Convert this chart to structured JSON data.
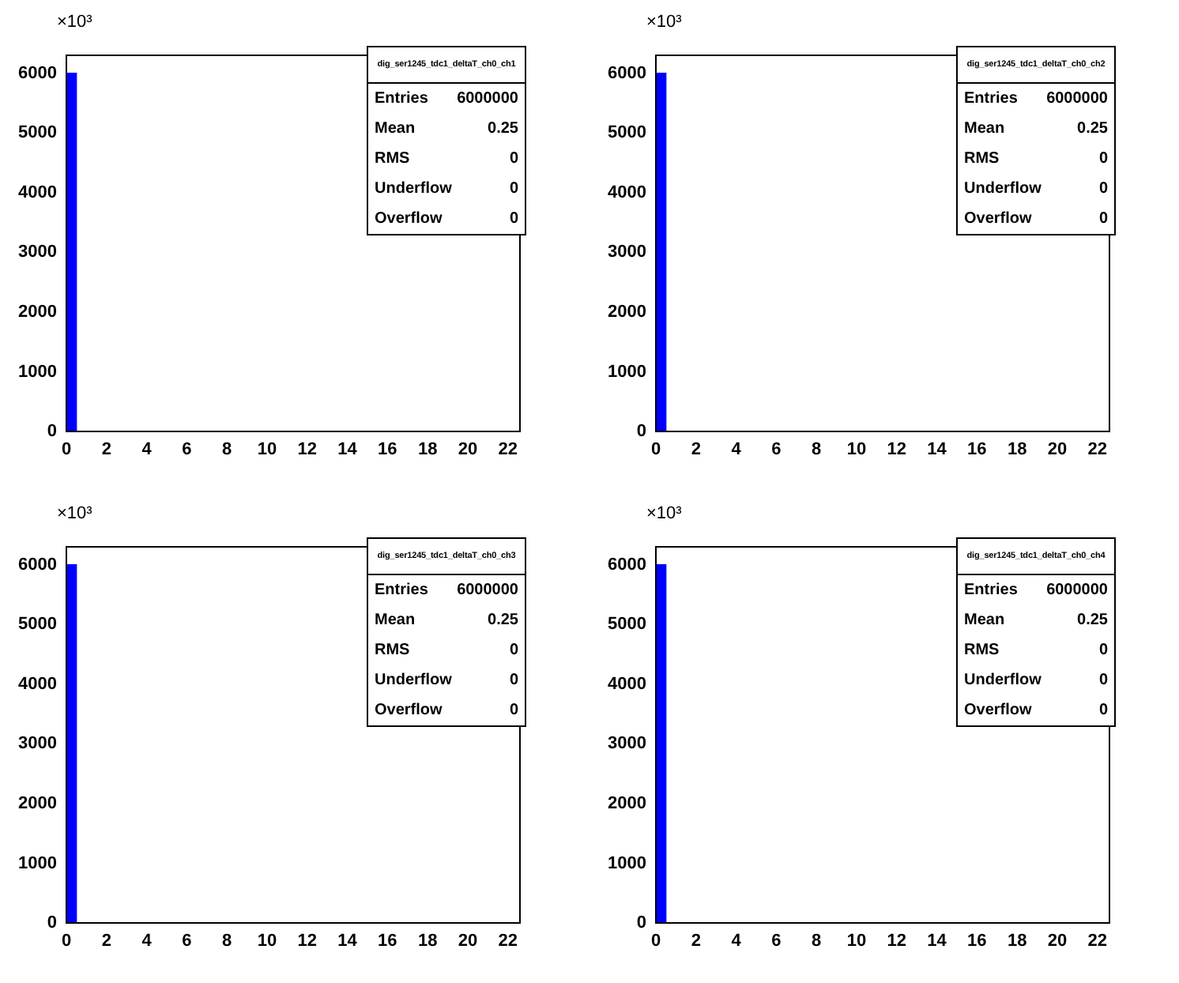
{
  "chart_data": [
    {
      "type": "histogram",
      "title": "dig_ser1245_tdc1_deltaT_ch0_ch1",
      "ylabel": "×10³",
      "color": "#0000ff",
      "bins": [
        0,
        0.5,
        1,
        1.5,
        2,
        2.5,
        3,
        3.5,
        4,
        4.5,
        5,
        5.5,
        6,
        6.5,
        7,
        7.5,
        8,
        8.5,
        9,
        9.5,
        10,
        10.5,
        11,
        11.5,
        12,
        12.5,
        13,
        13.5,
        14,
        14.5,
        15,
        15.5,
        16,
        16.5,
        17,
        17.5,
        18,
        18.5,
        19,
        19.5,
        20,
        20.5,
        21,
        21.5,
        22,
        22.5
      ],
      "values": [
        6000,
        0,
        0,
        0,
        0,
        0,
        0,
        0,
        0,
        0,
        0,
        0,
        0,
        0,
        0,
        0,
        0,
        0,
        0,
        0,
        0,
        0,
        0,
        0,
        0,
        0,
        0,
        0,
        0,
        0,
        0,
        0,
        0,
        0,
        0,
        0,
        0,
        0,
        0,
        0,
        0,
        0,
        0,
        0,
        0
      ],
      "xlim": [
        0,
        22.6
      ],
      "xticks": [
        0,
        2,
        4,
        6,
        8,
        10,
        12,
        14,
        16,
        18,
        20,
        22
      ],
      "ylim": [
        0,
        6300
      ],
      "yticks": [
        0,
        1000,
        2000,
        3000,
        4000,
        5000,
        6000
      ],
      "annotations": [
        "Entries",
        "6000000",
        "Mean",
        "0.25",
        "RMS",
        "0",
        "Underflow",
        "0",
        "Overflow",
        "0"
      ],
      "grid": false,
      "legend": false
    },
    {
      "type": "histogram",
      "title": "dig_ser1245_tdc1_deltaT_ch0_ch2",
      "ylabel": "×10³",
      "color": "#0000ff",
      "bins": [
        0,
        0.5,
        1,
        1.5,
        2,
        2.5,
        3,
        3.5,
        4,
        4.5,
        5,
        5.5,
        6,
        6.5,
        7,
        7.5,
        8,
        8.5,
        9,
        9.5,
        10,
        10.5,
        11,
        11.5,
        12,
        12.5,
        13,
        13.5,
        14,
        14.5,
        15,
        15.5,
        16,
        16.5,
        17,
        17.5,
        18,
        18.5,
        19,
        19.5,
        20,
        20.5,
        21,
        21.5,
        22,
        22.5
      ],
      "values": [
        6000,
        0,
        0,
        0,
        0,
        0,
        0,
        0,
        0,
        0,
        0,
        0,
        0,
        0,
        0,
        0,
        0,
        0,
        0,
        0,
        0,
        0,
        0,
        0,
        0,
        0,
        0,
        0,
        0,
        0,
        0,
        0,
        0,
        0,
        0,
        0,
        0,
        0,
        0,
        0,
        0,
        0,
        0,
        0,
        0
      ],
      "xlim": [
        0,
        22.6
      ],
      "xticks": [
        0,
        2,
        4,
        6,
        8,
        10,
        12,
        14,
        16,
        18,
        20,
        22
      ],
      "ylim": [
        0,
        6300
      ],
      "yticks": [
        0,
        1000,
        2000,
        3000,
        4000,
        5000,
        6000
      ],
      "annotations": [
        "Entries",
        "6000000",
        "Mean",
        "0.25",
        "RMS",
        "0",
        "Underflow",
        "0",
        "Overflow",
        "0"
      ],
      "grid": false,
      "legend": false
    },
    {
      "type": "histogram",
      "title": "dig_ser1245_tdc1_deltaT_ch0_ch3",
      "ylabel": "×10³",
      "color": "#0000ff",
      "bins": [
        0,
        0.5,
        1,
        1.5,
        2,
        2.5,
        3,
        3.5,
        4,
        4.5,
        5,
        5.5,
        6,
        6.5,
        7,
        7.5,
        8,
        8.5,
        9,
        9.5,
        10,
        10.5,
        11,
        11.5,
        12,
        12.5,
        13,
        13.5,
        14,
        14.5,
        15,
        15.5,
        16,
        16.5,
        17,
        17.5,
        18,
        18.5,
        19,
        19.5,
        20,
        20.5,
        21,
        21.5,
        22,
        22.5
      ],
      "values": [
        6000,
        0,
        0,
        0,
        0,
        0,
        0,
        0,
        0,
        0,
        0,
        0,
        0,
        0,
        0,
        0,
        0,
        0,
        0,
        0,
        0,
        0,
        0,
        0,
        0,
        0,
        0,
        0,
        0,
        0,
        0,
        0,
        0,
        0,
        0,
        0,
        0,
        0,
        0,
        0,
        0,
        0,
        0,
        0,
        0
      ],
      "xlim": [
        0,
        22.6
      ],
      "xticks": [
        0,
        2,
        4,
        6,
        8,
        10,
        12,
        14,
        16,
        18,
        20,
        22
      ],
      "ylim": [
        0,
        6300
      ],
      "yticks": [
        0,
        1000,
        2000,
        3000,
        4000,
        5000,
        6000
      ],
      "annotations": [
        "Entries",
        "6000000",
        "Mean",
        "0.25",
        "RMS",
        "0",
        "Underflow",
        "0",
        "Overflow",
        "0"
      ],
      "grid": false,
      "legend": false
    },
    {
      "type": "histogram",
      "title": "dig_ser1245_tdc1_deltaT_ch0_ch4",
      "ylabel": "×10³",
      "color": "#0000ff",
      "bins": [
        0,
        0.5,
        1,
        1.5,
        2,
        2.5,
        3,
        3.5,
        4,
        4.5,
        5,
        5.5,
        6,
        6.5,
        7,
        7.5,
        8,
        8.5,
        9,
        9.5,
        10,
        10.5,
        11,
        11.5,
        12,
        12.5,
        13,
        13.5,
        14,
        14.5,
        15,
        15.5,
        16,
        16.5,
        17,
        17.5,
        18,
        18.5,
        19,
        19.5,
        20,
        20.5,
        21,
        21.5,
        22,
        22.5
      ],
      "values": [
        6000,
        0,
        0,
        0,
        0,
        0,
        0,
        0,
        0,
        0,
        0,
        0,
        0,
        0,
        0,
        0,
        0,
        0,
        0,
        0,
        0,
        0,
        0,
        0,
        0,
        0,
        0,
        0,
        0,
        0,
        0,
        0,
        0,
        0,
        0,
        0,
        0,
        0,
        0,
        0,
        0,
        0,
        0,
        0,
        0
      ],
      "xlim": [
        0,
        22.6
      ],
      "xticks": [
        0,
        2,
        4,
        6,
        8,
        10,
        12,
        14,
        16,
        18,
        20,
        22
      ],
      "ylim": [
        0,
        6300
      ],
      "yticks": [
        0,
        1000,
        2000,
        3000,
        4000,
        5000,
        6000
      ],
      "annotations": [
        "Entries",
        "6000000",
        "Mean",
        "0.25",
        "RMS",
        "0",
        "Underflow",
        "0",
        "Overflow",
        "0"
      ],
      "grid": false,
      "legend": false
    }
  ]
}
